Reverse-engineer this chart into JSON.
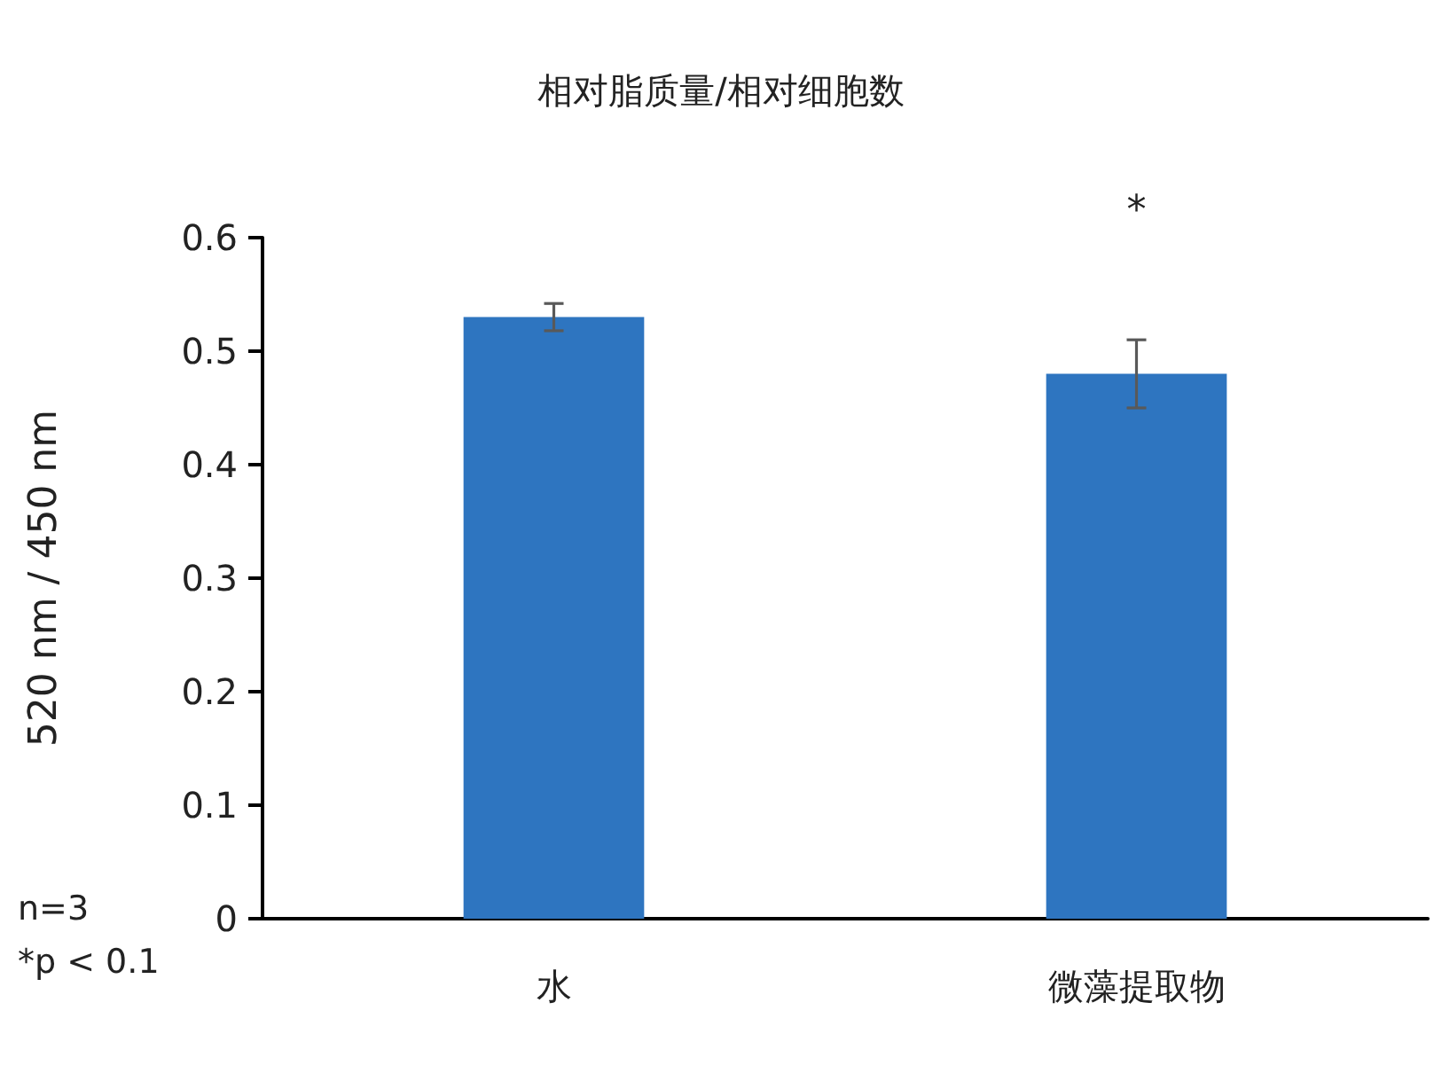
{
  "chart_data": {
    "type": "bar",
    "title": "相对脂质量/相对细胞数",
    "ylabel": "520 nm / 450 nm",
    "categories": [
      "水",
      "微藻提取物"
    ],
    "values": [
      0.53,
      0.48
    ],
    "errors": [
      0.012,
      0.03
    ],
    "color": "#2e75c0",
    "ylim": [
      0,
      0.6
    ],
    "yticks": [
      0,
      0.1,
      0.2,
      0.3,
      0.4,
      0.5,
      0.6
    ],
    "annotations": [
      "*",
      "n=3",
      "*p < 0.1"
    ]
  }
}
